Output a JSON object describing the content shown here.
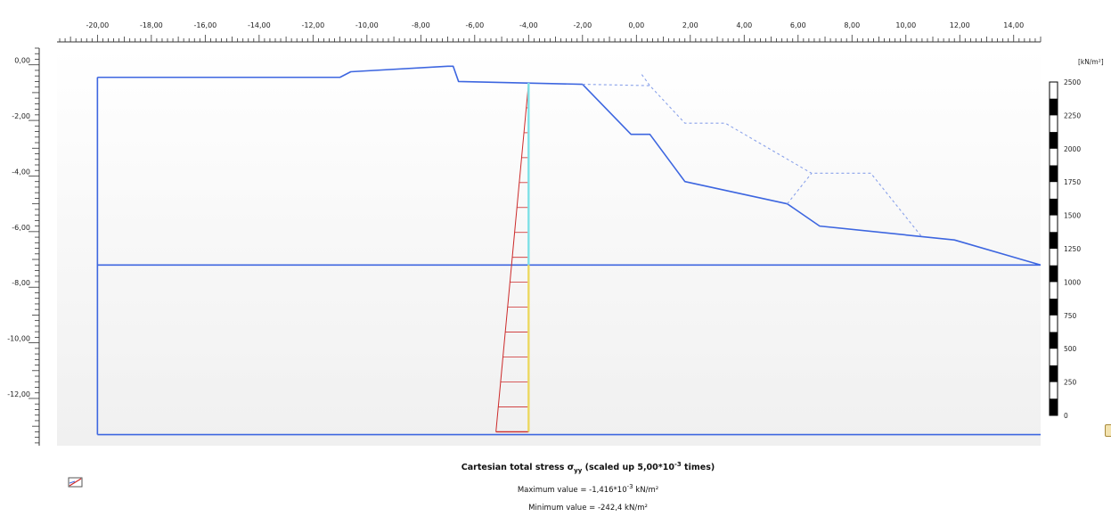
{
  "x_axis": {
    "ticks": [
      -20,
      -18,
      -16,
      -14,
      -12,
      -10,
      -8,
      -6,
      -4,
      -2,
      0,
      2,
      4,
      6,
      8,
      10,
      12,
      14
    ],
    "tick_labels": [
      "-20,00",
      "-18,00",
      "-16,00",
      "-14,00",
      "-12,00",
      "-10,00",
      "-8,00",
      "-6,00",
      "-4,00",
      "-2,00",
      "0,00",
      "2,00",
      "4,00",
      "6,00",
      "8,00",
      "10,00",
      "12,00",
      "14,00"
    ],
    "range": [
      -21.5,
      15.0
    ]
  },
  "y_axis": {
    "ticks": [
      0,
      -2,
      -4,
      -6,
      -8,
      -10,
      -12
    ],
    "tick_labels": [
      "0,00",
      "-2,00",
      "-4,00",
      "-6,00",
      "-8,00",
      "-10,00",
      "-12,00"
    ],
    "range": [
      -13.7,
      0.6
    ]
  },
  "legend": {
    "unit": "[kN/m²]",
    "labels": [
      "2500",
      "2250",
      "2000",
      "1750",
      "1500",
      "1250",
      "1000",
      "750",
      "500",
      "250",
      "0"
    ]
  },
  "caption": {
    "title_prefix": "Cartesian total stress σ",
    "title_sub": "yy",
    "title_suffix_pre": " (scaled up 5,00*10",
    "title_sup": "-3",
    "title_suffix_post": " times)",
    "max_prefix": "Maximum value = -1,416*10",
    "max_sup": "-3",
    "max_suffix": " kN/m²",
    "min_text": "Minimum value = -242,4 kN/m²"
  },
  "colors": {
    "geometry": "#3d66e0",
    "dashed": "#8aa2ea",
    "stress_red": "#cc2a2a",
    "wall_cyan": "#7ee0e6",
    "wall_yellow": "#ecd860"
  },
  "chart_data": {
    "type": "line",
    "xlabel": "",
    "ylabel": "",
    "xlim": [
      -21.5,
      15.0
    ],
    "ylim": [
      -13.7,
      0.6
    ],
    "series": [
      {
        "name": "",
        "x": [
          -20.0,
          -11.0,
          -10.6,
          -7.0,
          -6.8,
          -6.6,
          -2.0,
          -0.2,
          0.5,
          1.8,
          5.6,
          6.8,
          11.8,
          15.0
        ],
        "y": [
          -0.45,
          -0.45,
          -0.25,
          -0.05,
          -0.05,
          -0.6,
          -0.7,
          -2.5,
          -2.5,
          -4.2,
          -5.0,
          -5.8,
          -6.3,
          -7.2
        ]
      },
      {
        "name": "",
        "x": [
          -2.0,
          0.5,
          1.8,
          3.3,
          6.5,
          8.7,
          10.6
        ],
        "y": [
          -0.7,
          -0.75,
          -2.1,
          -2.1,
          -3.9,
          -3.9,
          -6.2
        ]
      }
    ],
    "water_level_y": -7.2,
    "bottom_y": -13.3,
    "left_x": -20.0,
    "wall": {
      "x": -4.0,
      "top_y": -0.65,
      "bottom_y": -13.2,
      "stress_top_kN": -0.001416,
      "stress_bottom_kN": -242.4,
      "scale": 0.005
    }
  }
}
